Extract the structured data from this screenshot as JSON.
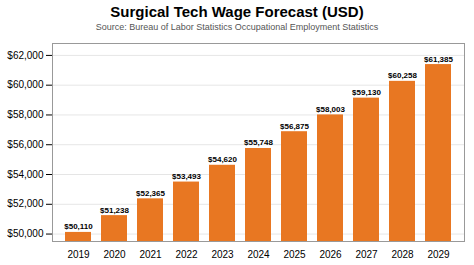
{
  "chart_data": {
    "type": "bar",
    "title": "Surgical Tech Wage Forecast (USD)",
    "subtitle": "Source: Bureau of Labor Statistics Occupational Employment Statistics",
    "categories": [
      "2019",
      "2020",
      "2021",
      "2022",
      "2023",
      "2024",
      "2025",
      "2026",
      "2027",
      "2028",
      "2029"
    ],
    "values": [
      50110,
      51238,
      52365,
      53493,
      54620,
      55748,
      56875,
      58003,
      59130,
      60258,
      61385
    ],
    "value_labels": [
      "$50,110",
      "$51,238",
      "$52,365",
      "$53,493",
      "$54,620",
      "$55,748",
      "$56,875",
      "$58,003",
      "$59,130",
      "$60,258",
      "$61,385"
    ],
    "data_labels": true,
    "color": "#E87722",
    "ylim": [
      49500,
      62800
    ],
    "yticks": [
      {
        "value": 50000,
        "label": "$50,000"
      },
      {
        "value": 52000,
        "label": "$52,000"
      },
      {
        "value": 54000,
        "label": "$54,000"
      },
      {
        "value": 56000,
        "label": "$56,000"
      },
      {
        "value": 58000,
        "label": "$58,000"
      },
      {
        "value": 60000,
        "label": "$60,000"
      },
      {
        "value": 62000,
        "label": "$62,000"
      }
    ],
    "grid": true
  }
}
